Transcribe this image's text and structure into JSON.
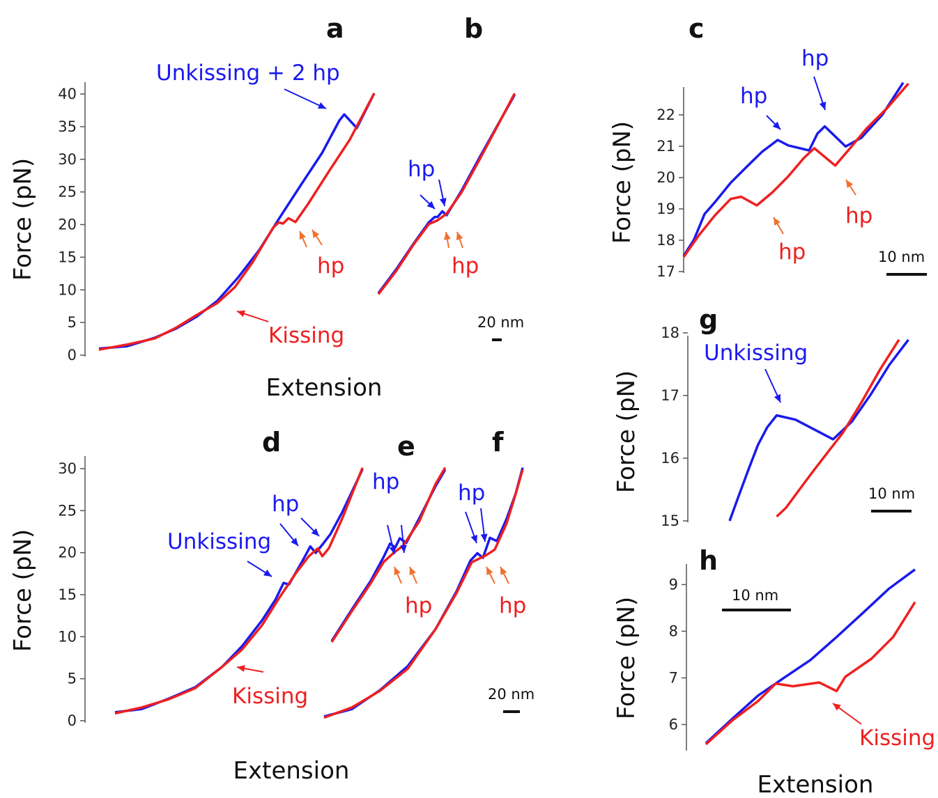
{
  "colors": {
    "blue": "#1a1aee",
    "red": "#ee2020",
    "orange": "#f07030",
    "axis": "#555555"
  },
  "chart_data": [
    {
      "panel": "a",
      "type": "line",
      "xlabel": "",
      "ylabel": "Force (pN)",
      "yticks": [
        "0",
        "5",
        "10",
        "15",
        "20",
        "25",
        "30",
        "35",
        "40"
      ],
      "ylim": [
        0,
        40
      ],
      "series": [
        {
          "color": "blue",
          "points": [
            [
              0,
              1
            ],
            [
              40,
              1.5
            ],
            [
              80,
              2.5
            ],
            [
              110,
              4
            ],
            [
              140,
              6
            ],
            [
              170,
              8.5
            ],
            [
              200,
              12
            ],
            [
              230,
              16
            ],
            [
              260,
              21
            ],
            [
              290,
              26
            ],
            [
              320,
              31
            ],
            [
              345,
              36
            ],
            [
              352,
              36.7
            ],
            [
              370,
              34.8
            ],
            [
              395,
              40
            ]
          ]
        },
        {
          "color": "red",
          "points": [
            [
              0,
              1
            ],
            [
              40,
              1.5
            ],
            [
              80,
              2.5
            ],
            [
              110,
              4
            ],
            [
              140,
              6
            ],
            [
              170,
              8
            ],
            [
              195,
              10.5
            ],
            [
              220,
              14
            ],
            [
              250,
              19.5
            ],
            [
              258,
              20.5
            ],
            [
              264,
              20.1
            ],
            [
              272,
              20.8
            ],
            [
              282,
              20.3
            ],
            [
              300,
              23
            ],
            [
              330,
              28
            ],
            [
              360,
              33
            ],
            [
              395,
              40
            ]
          ]
        }
      ],
      "annotations": [
        {
          "text": "Unkissing + 2 hp",
          "color": "blue"
        },
        {
          "text": "hp",
          "color": "red"
        },
        {
          "text": "Kissing",
          "color": "red"
        }
      ],
      "scalebar": "20 nm"
    },
    {
      "panel": "b",
      "type": "line",
      "ylim": [
        0,
        40
      ],
      "series": [
        {
          "color": "blue",
          "points": [
            [
              0,
              9.5
            ],
            [
              30,
              13
            ],
            [
              60,
              17
            ],
            [
              85,
              20.5
            ],
            [
              95,
              21.3
            ],
            [
              100,
              21
            ],
            [
              108,
              22
            ],
            [
              115,
              21.6
            ],
            [
              140,
              25
            ],
            [
              170,
              30
            ],
            [
              200,
              35
            ],
            [
              230,
              40
            ]
          ]
        },
        {
          "color": "red",
          "points": [
            [
              0,
              9.5
            ],
            [
              30,
              13
            ],
            [
              60,
              17
            ],
            [
              85,
              20
            ],
            [
              100,
              20.5
            ],
            [
              115,
              21.5
            ],
            [
              140,
              25
            ],
            [
              170,
              30
            ],
            [
              200,
              35
            ],
            [
              230,
              40
            ]
          ]
        }
      ],
      "annotations": [
        {
          "text": "hp",
          "color": "blue"
        },
        {
          "text": "hp",
          "color": "red"
        }
      ]
    },
    {
      "panel": "c",
      "type": "line",
      "ylabel": "Force (pN)",
      "yticks": [
        "17",
        "18",
        "19",
        "20",
        "21",
        "22"
      ],
      "ylim": [
        17,
        23
      ],
      "series": [
        {
          "color": "blue",
          "points": [
            [
              0,
              17.5
            ],
            [
              10,
              18
            ],
            [
              20,
              18.8
            ],
            [
              30,
              19.2
            ],
            [
              45,
              19.8
            ],
            [
              60,
              20.3
            ],
            [
              75,
              20.8
            ],
            [
              90,
              21.2
            ],
            [
              100,
              21
            ],
            [
              120,
              20.9
            ],
            [
              128,
              21.4
            ],
            [
              135,
              21.6
            ],
            [
              155,
              21
            ],
            [
              170,
              21.3
            ],
            [
              190,
              22
            ],
            [
              210,
              23
            ]
          ]
        },
        {
          "color": "red",
          "points": [
            [
              0,
              17.5
            ],
            [
              15,
              18.2
            ],
            [
              30,
              18.8
            ],
            [
              45,
              19.3
            ],
            [
              55,
              19.4
            ],
            [
              70,
              19.1
            ],
            [
              85,
              19.5
            ],
            [
              100,
              20
            ],
            [
              115,
              20.6
            ],
            [
              125,
              20.9
            ],
            [
              145,
              20.4
            ],
            [
              160,
              21
            ],
            [
              175,
              21.6
            ],
            [
              195,
              22.2
            ],
            [
              215,
              23
            ]
          ]
        }
      ],
      "annotations": [
        {
          "text": "hp",
          "color": "blue"
        },
        {
          "text": "hp",
          "color": "blue"
        },
        {
          "text": "hp",
          "color": "red"
        },
        {
          "text": "hp",
          "color": "red"
        }
      ],
      "scalebar": "10 nm"
    },
    {
      "panel": "g",
      "type": "line",
      "ylabel": "Force (pN)",
      "yticks": [
        "15",
        "16",
        "17",
        "18"
      ],
      "ylim": [
        15,
        18
      ],
      "series": [
        {
          "color": "blue",
          "points": [
            [
              0,
              15
            ],
            [
              10,
              15.4
            ],
            [
              20,
              15.8
            ],
            [
              30,
              16.2
            ],
            [
              40,
              16.5
            ],
            [
              50,
              16.7
            ],
            [
              70,
              16.6
            ],
            [
              110,
              16.3
            ],
            [
              130,
              16.6
            ],
            [
              150,
              17
            ],
            [
              170,
              17.5
            ],
            [
              190,
              17.9
            ]
          ]
        },
        {
          "color": "red",
          "points": [
            [
              50,
              15.05
            ],
            [
              60,
              15.2
            ],
            [
              75,
              15.5
            ],
            [
              90,
              15.8
            ],
            [
              105,
              16.1
            ],
            [
              120,
              16.4
            ],
            [
              140,
              16.9
            ],
            [
              160,
              17.4
            ],
            [
              180,
              17.9
            ]
          ]
        }
      ],
      "annotations": [
        {
          "text": "Unkissing",
          "color": "blue"
        }
      ],
      "scalebar": "10 nm"
    },
    {
      "panel": "h",
      "type": "line",
      "xlabel": "Extension",
      "ylabel": "Force (pN)",
      "yticks": [
        "6",
        "7",
        "8",
        "9"
      ],
      "ylim": [
        5.5,
        9.5
      ],
      "series": [
        {
          "color": "blue",
          "points": [
            [
              0,
              5.6
            ],
            [
              30,
              6.1
            ],
            [
              60,
              6.6
            ],
            [
              90,
              7.0
            ],
            [
              120,
              7.4
            ],
            [
              150,
              7.9
            ],
            [
              180,
              8.4
            ],
            [
              210,
              8.9
            ],
            [
              240,
              9.3
            ]
          ]
        },
        {
          "color": "red",
          "points": [
            [
              0,
              5.6
            ],
            [
              30,
              6.1
            ],
            [
              60,
              6.5
            ],
            [
              80,
              6.9
            ],
            [
              100,
              6.8
            ],
            [
              130,
              6.9
            ],
            [
              150,
              6.7
            ],
            [
              160,
              7.0
            ],
            [
              190,
              7.4
            ],
            [
              215,
              7.9
            ],
            [
              240,
              8.6
            ]
          ]
        }
      ],
      "annotations": [
        {
          "text": "Kissing",
          "color": "red"
        }
      ],
      "scalebar": "10 nm"
    },
    {
      "panel": "d",
      "type": "line",
      "xlabel": "Extension",
      "ylabel": "Force (pN)",
      "yticks": [
        "0",
        "5",
        "10",
        "15",
        "20",
        "25",
        "30"
      ],
      "ylim": [
        0,
        30
      ],
      "series": [
        {
          "color": "blue",
          "points": [
            [
              0,
              1
            ],
            [
              40,
              1.5
            ],
            [
              80,
              2.5
            ],
            [
              120,
              4
            ],
            [
              160,
              6.5
            ],
            [
              190,
              9
            ],
            [
              220,
              12
            ],
            [
              240,
              14.5
            ],
            [
              252,
              16.5
            ],
            [
              260,
              16.3
            ],
            [
              280,
              19
            ],
            [
              292,
              20.8
            ],
            [
              300,
              20.1
            ],
            [
              310,
              21
            ],
            [
              322,
              22.2
            ],
            [
              340,
              25
            ],
            [
              370,
              30
            ]
          ]
        },
        {
          "color": "red",
          "points": [
            [
              0,
              1
            ],
            [
              40,
              1.5
            ],
            [
              80,
              2.5
            ],
            [
              120,
              4
            ],
            [
              160,
              6.3
            ],
            [
              190,
              8.5
            ],
            [
              220,
              11.5
            ],
            [
              245,
              14.5
            ],
            [
              270,
              17.5
            ],
            [
              290,
              19.5
            ],
            [
              303,
              20.4
            ],
            [
              310,
              19.5
            ],
            [
              320,
              20.6
            ],
            [
              340,
              24
            ],
            [
              370,
              30
            ]
          ]
        }
      ],
      "annotations": [
        {
          "text": "Unkissing",
          "color": "blue"
        },
        {
          "text": "hp",
          "color": "blue"
        },
        {
          "text": "Kissing",
          "color": "red"
        }
      ]
    },
    {
      "panel": "e",
      "type": "line",
      "ylim": [
        0,
        30
      ],
      "series": [
        {
          "color": "blue",
          "points": [
            [
              0,
              9.5
            ],
            [
              30,
              13
            ],
            [
              60,
              16.5
            ],
            [
              80,
              19.5
            ],
            [
              90,
              21
            ],
            [
              98,
              20.5
            ],
            [
              105,
              21.8
            ],
            [
              115,
              21.3
            ],
            [
              135,
              24
            ],
            [
              160,
              28
            ],
            [
              175,
              30
            ]
          ]
        },
        {
          "color": "red",
          "points": [
            [
              0,
              9.5
            ],
            [
              30,
              13
            ],
            [
              60,
              16.3
            ],
            [
              80,
              19
            ],
            [
              95,
              20
            ],
            [
              110,
              20.8
            ],
            [
              135,
              23.8
            ],
            [
              160,
              28
            ],
            [
              175,
              30
            ]
          ]
        }
      ],
      "annotations": [
        {
          "text": "hp",
          "color": "blue"
        },
        {
          "text": "hp",
          "color": "red"
        }
      ]
    },
    {
      "panel": "f",
      "type": "line",
      "ylim": [
        0,
        30
      ],
      "series": [
        {
          "color": "blue",
          "points": [
            [
              0,
              0.5
            ],
            [
              40,
              1.5
            ],
            [
              80,
              3.5
            ],
            [
              120,
              6.5
            ],
            [
              160,
              11
            ],
            [
              190,
              15.5
            ],
            [
              210,
              19
            ],
            [
              220,
              20
            ],
            [
              228,
              19.5
            ],
            [
              238,
              21.8
            ],
            [
              248,
              21.3
            ],
            [
              262,
              24
            ],
            [
              275,
              27
            ],
            [
              285,
              30
            ]
          ]
        },
        {
          "color": "red",
          "points": [
            [
              0,
              0.5
            ],
            [
              40,
              1.5
            ],
            [
              80,
              3.5
            ],
            [
              120,
              6.3
            ],
            [
              160,
              10.8
            ],
            [
              190,
              15.2
            ],
            [
              212,
              18.8
            ],
            [
              232,
              19.8
            ],
            [
              245,
              20.5
            ],
            [
              262,
              23.5
            ],
            [
              275,
              27
            ],
            [
              285,
              30
            ]
          ]
        }
      ],
      "annotations": [
        {
          "text": "hp",
          "color": "blue"
        },
        {
          "text": "hp",
          "color": "red"
        }
      ],
      "scalebar": "20 nm"
    }
  ]
}
